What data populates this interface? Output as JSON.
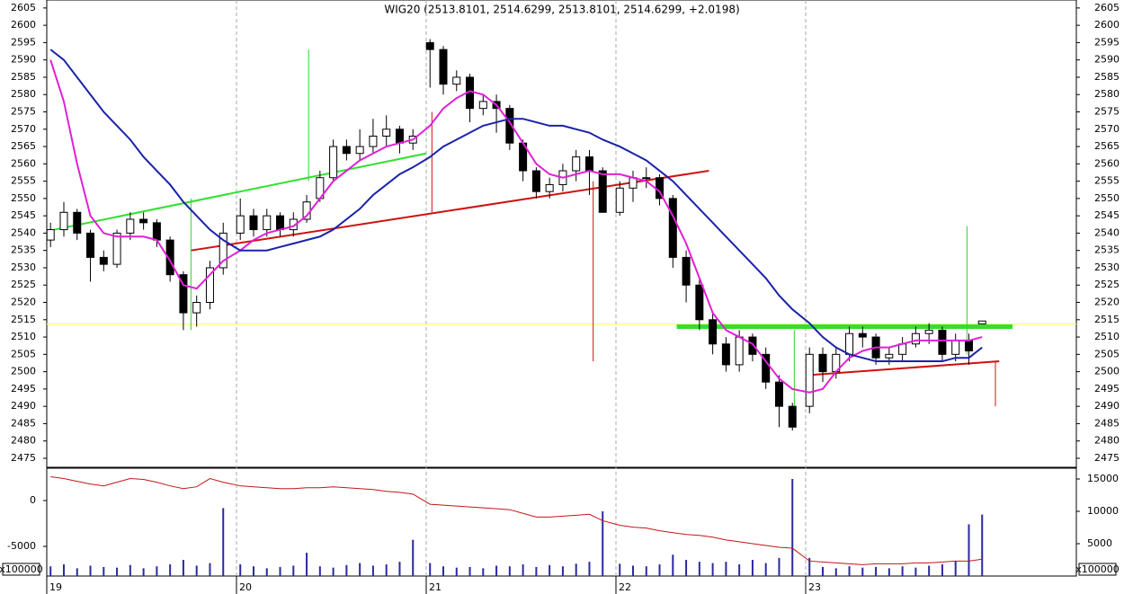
{
  "chart_data": {
    "type": "candlestick",
    "title": "WIG20 (2513.8101, 2514.6299, 2513.8101, 2514.6299, +2.0198)",
    "xlim": [
      19,
      24.4265
    ],
    "xticks": [
      19,
      20,
      21,
      22,
      23
    ],
    "ylim": [
      2472.4,
      2607.3
    ],
    "yticks": [
      2475,
      2480,
      2485,
      2490,
      2495,
      2500,
      2505,
      2510,
      2515,
      2520,
      2525,
      2530,
      2535,
      2540,
      2545,
      2550,
      2555,
      2560,
      2565,
      2570,
      2575,
      2580,
      2585,
      2590,
      2595,
      2600,
      2605
    ],
    "grid": true,
    "x": [
      19.02,
      19.09,
      19.16,
      19.23,
      19.3,
      19.37,
      19.44,
      19.51,
      19.58,
      19.65,
      19.72,
      19.79,
      19.86,
      19.93,
      20.02,
      20.09,
      20.16,
      20.23,
      20.3,
      20.37,
      20.44,
      20.51,
      20.58,
      20.65,
      20.72,
      20.79,
      20.86,
      20.93,
      21.02,
      21.09,
      21.16,
      21.23,
      21.3,
      21.37,
      21.44,
      21.51,
      21.58,
      21.65,
      21.72,
      21.79,
      21.86,
      21.93,
      22.02,
      22.09,
      22.16,
      22.23,
      22.3,
      22.37,
      22.44,
      22.51,
      22.58,
      22.65,
      22.72,
      22.79,
      22.86,
      22.93,
      23.02,
      23.09,
      23.16,
      23.23,
      23.3,
      23.37,
      23.44,
      23.51,
      23.58,
      23.65,
      23.72,
      23.79,
      23.86,
      23.93
    ],
    "open": [
      2538,
      2541,
      2546,
      2540,
      2533,
      2531,
      2540,
      2544,
      2543,
      2538,
      2528,
      2517,
      2520,
      2530,
      2540,
      2545,
      2541,
      2545,
      2541,
      2544,
      2550,
      2556,
      2565,
      2563,
      2565,
      2568,
      2570,
      2566,
      2595,
      2593,
      2583,
      2585,
      2576,
      2578,
      2576,
      2566,
      2558,
      2552,
      2554,
      2558,
      2562,
      2558,
      2546,
      2553,
      2556,
      2556,
      2550,
      2533,
      2525,
      2515,
      2508,
      2502,
      2510,
      2505,
      2497,
      2490,
      2490,
      2505,
      2500,
      2505,
      2511,
      2510,
      2504,
      2505,
      2508,
      2511,
      2512,
      2505,
      2509,
      2513.8101
    ],
    "high": [
      2543,
      2549,
      2547,
      2541,
      2535,
      2541,
      2546,
      2546,
      2544,
      2539,
      2529,
      2522,
      2532,
      2543,
      2550,
      2547,
      2547,
      2546,
      2546,
      2551,
      2558,
      2567,
      2567,
      2570,
      2573,
      2574,
      2571,
      2570,
      2596,
      2594,
      2587,
      2586,
      2580,
      2580,
      2577,
      2567,
      2559,
      2556,
      2560,
      2564,
      2564,
      2559,
      2555,
      2558,
      2559,
      2557,
      2551,
      2535,
      2527,
      2517,
      2510,
      2512,
      2511,
      2507,
      2499,
      2491,
      2507,
      2507,
      2507,
      2513,
      2513,
      2511,
      2507,
      2510,
      2513,
      2514,
      2513,
      2511,
      2511,
      2514.6299
    ],
    "low": [
      2536,
      2539,
      2538,
      2526,
      2529,
      2530,
      2538,
      2541,
      2536,
      2526,
      2512,
      2513,
      2518,
      2528,
      2538,
      2539,
      2539,
      2539,
      2539,
      2543,
      2549,
      2555,
      2561,
      2561,
      2563,
      2565,
      2563,
      2564,
      2582,
      2580,
      2581,
      2572,
      2574,
      2569,
      2564,
      2555,
      2550,
      2550,
      2552,
      2555,
      2551,
      2546,
      2545,
      2549,
      2553,
      2548,
      2530,
      2520,
      2512,
      2505,
      2500,
      2500,
      2503,
      2495,
      2484,
      2483,
      2488,
      2497,
      2498,
      2503,
      2507,
      2502,
      2502,
      2503,
      2507,
      2508,
      2503,
      2503,
      2502,
      2513.8101
    ],
    "close": [
      2541,
      2546,
      2540,
      2533,
      2531,
      2540,
      2544,
      2543,
      2538,
      2528,
      2517,
      2520,
      2530,
      2540,
      2545,
      2541,
      2545,
      2541,
      2544,
      2549,
      2556,
      2565,
      2563,
      2565,
      2568,
      2570,
      2566,
      2568,
      2593,
      2583,
      2585,
      2576,
      2578,
      2576,
      2566,
      2558,
      2552,
      2554,
      2558,
      2562,
      2558,
      2546,
      2553,
      2556,
      2556,
      2550,
      2533,
      2525,
      2515,
      2508,
      2502,
      2510,
      2505,
      2497,
      2490,
      2484,
      2505,
      2500,
      2505,
      2511,
      2510,
      2504,
      2505,
      2508,
      2511,
      2512,
      2505,
      2509,
      2506,
      2514.6299
    ],
    "series": [
      {
        "color": "#e020d8",
        "values": [
          2590,
          2578,
          2560,
          2545,
          2540,
          2539,
          2539,
          2539,
          2538,
          2532,
          2525,
          2524,
          2528,
          2532,
          2535,
          2538,
          2540,
          2541,
          2542,
          2545,
          2550,
          2555,
          2558,
          2561,
          2563,
          2565,
          2566,
          2567,
          2571,
          2576,
          2579,
          2581,
          2580,
          2577,
          2572,
          2566,
          2560,
          2557,
          2556,
          2557,
          2558,
          2557,
          2557,
          2556,
          2555,
          2552,
          2545,
          2537,
          2527,
          2517,
          2512,
          2510,
          2508,
          2503,
          2498,
          2495,
          2494,
          2495,
          2500,
          2504,
          2506,
          2507,
          2507,
          2508,
          2509,
          2509,
          2509,
          2509,
          2509,
          2510
        ]
      },
      {
        "color": "#1a22a8",
        "values": [
          2593,
          2590,
          2585,
          2580,
          2575,
          2571,
          2567,
          2562,
          2558,
          2554,
          2549,
          2545,
          2541,
          2538,
          2535,
          2535,
          2535,
          2536,
          2537,
          2538,
          2539,
          2541,
          2544,
          2547,
          2551,
          2554,
          2557,
          2559,
          2562,
          2565,
          2567,
          2569,
          2571,
          2572,
          2573,
          2573,
          2572,
          2571,
          2571,
          2570,
          2569,
          2567,
          2565,
          2563,
          2561,
          2558,
          2555,
          2551,
          2547,
          2543,
          2539,
          2535,
          2531,
          2527,
          2522,
          2518,
          2514,
          2510,
          2507,
          2505,
          2504,
          2503,
          2503,
          2503,
          2503,
          2503,
          2503,
          2504,
          2504,
          2507
        ]
      }
    ],
    "lines": [
      {
        "color": "#ffff40",
        "width": 1,
        "x": [
          19,
          24.4265
        ],
        "y": [
          2513.7,
          2513.7
        ]
      },
      {
        "color": "#30e030",
        "width": 2,
        "x": [
          19.04,
          21.0
        ],
        "y": [
          2541,
          2563
        ]
      },
      {
        "color": "#d01010",
        "width": 2,
        "x": [
          19.76,
          22.49
        ],
        "y": [
          2535,
          2558
        ]
      },
      {
        "color": "#30e030",
        "width": 5,
        "x": [
          22.32,
          24.09
        ],
        "y": [
          2513,
          2513
        ]
      },
      {
        "color": "#d01010",
        "width": 2,
        "x": [
          23.01,
          24.02
        ],
        "y": [
          2499,
          2503
        ]
      }
    ],
    "signals": [
      {
        "color": "#30d030",
        "x": 19.76,
        "y": [
          2550,
          2512
        ]
      },
      {
        "color": "#30d030",
        "x": 20.38,
        "y": [
          2593,
          2555
        ]
      },
      {
        "color": "#d01010",
        "x": 21.03,
        "y": [
          2575,
          2546
        ]
      },
      {
        "color": "#d01010",
        "x": 21.88,
        "y": [
          2555,
          2503
        ]
      },
      {
        "color": "#30d030",
        "x": 22.94,
        "y": [
          2512,
          2485
        ]
      },
      {
        "color": "#30d030",
        "x": 23.85,
        "y": [
          2542,
          2505
        ]
      },
      {
        "color": "#d01010",
        "x": 24.0,
        "y": [
          2503,
          2490
        ]
      }
    ],
    "volume": {
      "color": "#2a2aa0",
      "axis": "y2",
      "values": [
        1500,
        1800,
        1200,
        1600,
        1400,
        1300,
        1700,
        1200,
        1500,
        1800,
        2500,
        1600,
        2000,
        10500,
        1800,
        1500,
        1200,
        1400,
        1600,
        3600,
        1500,
        1300,
        1700,
        2000,
        1600,
        1800,
        2200,
        5600,
        2000,
        1500,
        1300,
        1400,
        1200,
        1600,
        1500,
        1800,
        1400,
        1700,
        1500,
        1900,
        2200,
        10000,
        1900,
        1600,
        1500,
        1800,
        3300,
        2500,
        2200,
        2000,
        2200,
        1800,
        2500,
        2000,
        2800,
        15000,
        2800,
        1400,
        1200,
        1500,
        1300,
        1400,
        1200,
        1500,
        1300,
        1600,
        1800,
        2300,
        8000,
        9500
      ]
    },
    "indicator": {
      "color": "#c01818",
      "values": [
        2600,
        2400,
        2100,
        1800,
        1600,
        2000,
        2400,
        2300,
        2000,
        1600,
        1300,
        1500,
        2400,
        2000,
        1600,
        1500,
        1400,
        1300,
        1300,
        1400,
        1400,
        1500,
        1400,
        1300,
        1200,
        1000,
        900,
        700,
        -400,
        -500,
        -600,
        -700,
        -800,
        -900,
        -1000,
        -1400,
        -1800,
        -1800,
        -1700,
        -1600,
        -1500,
        -2200,
        -2700,
        -2900,
        -3000,
        -3300,
        -3500,
        -3700,
        -3800,
        -4000,
        -4300,
        -4500,
        -4700,
        -4900,
        -5100,
        -5200,
        -6600,
        -6700,
        -6800,
        -6900,
        -7000,
        -6900,
        -6900,
        -6900,
        -6800,
        -6800,
        -6700,
        -6600,
        -6600,
        -6400
      ]
    },
    "indicator_ylim": [
      -8235,
      3530
    ],
    "indicator_yticks": [
      -5000,
      0
    ],
    "y2lim": [
      0,
      16667
    ],
    "y2ticks": [
      5000,
      10000,
      15000
    ],
    "volume_unit": "x100000"
  }
}
